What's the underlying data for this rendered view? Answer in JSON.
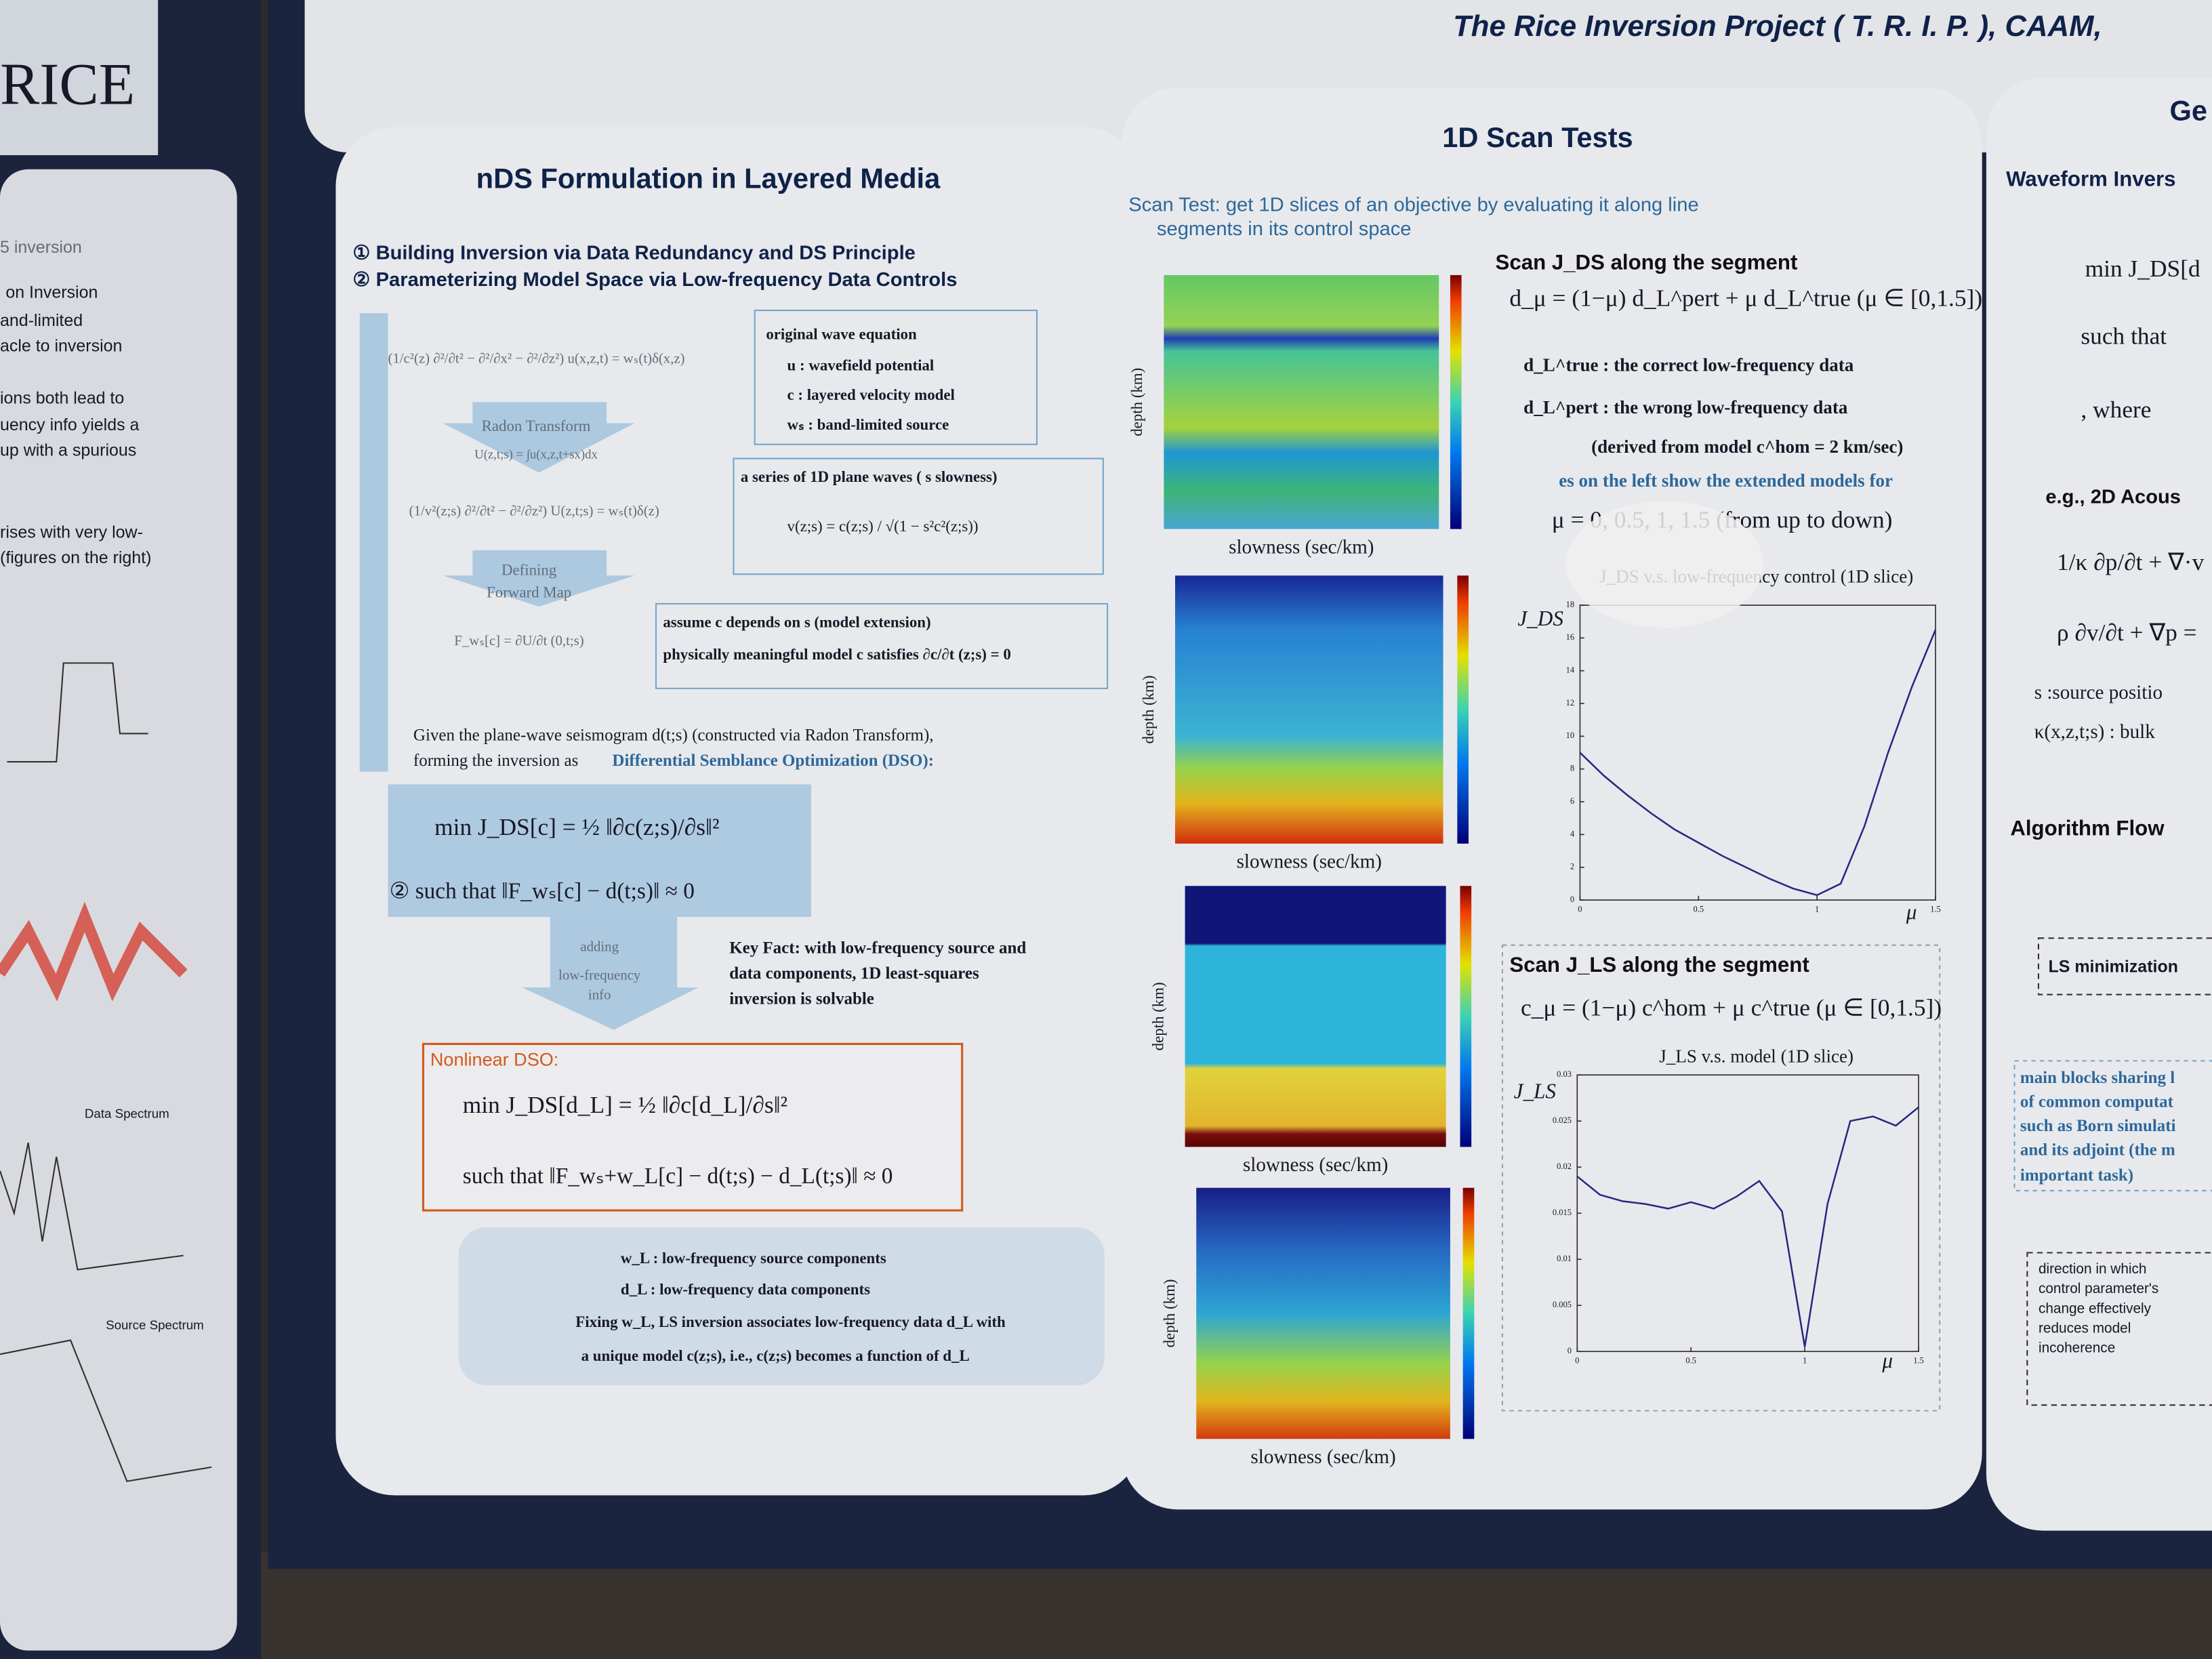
{
  "header": {
    "title": "The Rice Inversion Project ( T. R. I. P. ), CAAM,"
  },
  "left_poster": {
    "logo": "RICE",
    "lines": [
      "5 inversion",
      "on Inversion",
      "and-limited",
      "acle to inversion",
      "ions both lead to",
      "uency info yields a",
      "up with a spurious",
      "rises with very low-",
      "(figures on the right)"
    ],
    "plot_labels": [
      "Data Spectrum",
      "Source Spectrum"
    ]
  },
  "left_panel": {
    "title": "nDS Formulation in Layered Media",
    "points": [
      "① Building Inversion via Data Redundancy and DS Principle",
      "② Parameterizing Model Space via Low-frequency Data Controls"
    ],
    "wave_equation": "(1/c²(z) ∂²/∂t² − ∂²/∂x² − ∂²/∂z²) u(x,z,t) = wₛ(t)δ(x,z)",
    "wave_box": [
      "original wave equation",
      "u : wavefield potential",
      "c : layered velocity model",
      "wₛ : band-limited source"
    ],
    "radon": [
      "Radon Transform",
      "U(z,t;s) = ∫u(x,z,t+sx)dx"
    ],
    "plane_equation": "(1/v²(z;s) ∂²/∂t² − ∂²/∂z²) U(z,t;s) = wₛ(t)δ(z)",
    "plane_box": [
      "a series of 1D plane waves ( s slowness)",
      "v(z;s) = c(z;s) / √(1 − s²c²(z;s))"
    ],
    "forward": [
      "Defining",
      "Forward Map"
    ],
    "forward_map": "F_wₛ[c] = ∂U/∂t (0,t;s)",
    "extension_box": [
      "assume c depends on s (model extension)",
      "physically meaningful model c satisfies ∂c/∂t (z;s) = 0"
    ],
    "given": [
      "Given the plane-wave seismogram d(t;s) (constructed via Radon Transform),",
      "forming the inversion as"
    ],
    "dso": "Differential Semblance Optimization (DSO):",
    "dso_problem": [
      "min J_DS[c] = ½ ‖∂c(z;s)/∂s‖²",
      "②  such that  ‖F_wₛ[c] − d(t;s)‖ ≈ 0"
    ],
    "adding": [
      "adding",
      "low-frequency",
      "info"
    ],
    "key_fact": [
      "Key Fact:  with low-frequency source and",
      "data components, 1D least-squares",
      "inversion is solvable"
    ],
    "nonlinear_title": "Nonlinear DSO:",
    "nonlinear": [
      "min J_DS[d_L] = ½ ‖∂c[d_L]/∂s‖²",
      "such that ‖F_wₛ+w_L[c] − d(t;s) − d_L(t;s)‖ ≈ 0"
    ],
    "notes": [
      "w_L : low-frequency source components",
      "d_L : low-frequency data components",
      "Fixing  w_L, LS inversion associates low-frequency data  d_L with",
      "a unique model c(z;s), i.e., c(z;s) becomes a function of d_L"
    ]
  },
  "center_panel": {
    "title": "1D Scan Tests",
    "intro": [
      "Scan Test: get 1D slices of an objective by evaluating it along line",
      "segments in its control space"
    ],
    "image_labels": {
      "ylabel": "depth (km)",
      "xlabel": "slowness (sec/km)"
    },
    "scan_ds": {
      "heading": "Scan J_DS along the segment",
      "equation": "d_μ = (1−μ) d_L^pert + μ d_L^true    (μ ∈ [0,1.5])",
      "lines": [
        "d_L^true  : the correct low-frequency data",
        "d_L^pert  : the wrong low-frequency data",
        "(derived from model c^hom = 2 km/sec)"
      ],
      "note": "es on the left show the extended models for",
      "order": "μ = 0, 0.5, 1, 1.5  (from up to down)"
    },
    "scan_ls": {
      "heading": "Scan J_LS along the segment",
      "equation": "c_μ = (1−μ) c^hom + μ c^true    (μ ∈ [0,1.5])"
    }
  },
  "chart_data": [
    {
      "type": "line",
      "title": "J_DS v.s. low-frequency control (1D slice)",
      "ylabel": "J_DS",
      "xlabel": "μ",
      "x": [
        0,
        0.1,
        0.2,
        0.3,
        0.4,
        0.5,
        0.6,
        0.7,
        0.8,
        0.9,
        1.0,
        1.1,
        1.2,
        1.3,
        1.4,
        1.5
      ],
      "values": [
        9,
        7.6,
        6.4,
        5.3,
        4.3,
        3.5,
        2.7,
        2.0,
        1.3,
        0.7,
        0.3,
        1.0,
        4.5,
        9,
        13,
        16.5
      ],
      "color": "#2a2a8a",
      "xlim": [
        0,
        1.5
      ],
      "xticks": [
        0,
        0.5,
        1,
        1.5
      ],
      "ylim": [
        0,
        18
      ],
      "yticks": [
        0,
        2,
        4,
        6,
        8,
        10,
        12,
        14,
        16,
        18
      ]
    },
    {
      "type": "line",
      "title": "J_LS v.s. model (1D slice)",
      "ylabel": "J_LS",
      "xlabel": "μ",
      "x": [
        0,
        0.1,
        0.2,
        0.3,
        0.4,
        0.5,
        0.6,
        0.7,
        0.8,
        0.9,
        1.0,
        1.1,
        1.2,
        1.3,
        1.4,
        1.5
      ],
      "values": [
        0.019,
        0.017,
        0.0163,
        0.016,
        0.0155,
        0.0162,
        0.0155,
        0.0168,
        0.0185,
        0.0152,
        0.0005,
        0.016,
        0.025,
        0.0255,
        0.0245,
        0.0265
      ],
      "color": "#2a2a8a",
      "xlim": [
        0,
        1.5
      ],
      "xticks": [
        0,
        0.5,
        1,
        1.5
      ],
      "ylim": [
        0,
        0.03
      ],
      "yticks": [
        0,
        0.005,
        0.01,
        0.015,
        0.02,
        0.025,
        0.03
      ]
    }
  ],
  "right_panel": {
    "title": "Ge",
    "heading": "Waveform Invers",
    "lines": [
      "min J_DS[d",
      "such that",
      ", where"
    ],
    "example": "e.g., 2D Acous",
    "equations": [
      "1/κ ∂p/∂t + ∇·v",
      "ρ ∂v/∂t + ∇p ="
    ],
    "symbols": [
      "s :source positio",
      "κ(x,z,t;s) : bulk"
    ],
    "algorithm": "Algorithm Flow",
    "ls_box": "LS minimization",
    "blue_box": [
      "main blocks sharing l",
      "of common computat",
      "such as Born simulati",
      "and its adjoint (the m",
      "important task)"
    ],
    "direction_box": [
      "direction in which",
      "control parameter's",
      "change effectively",
      "reduces model",
      "incoherence"
    ]
  }
}
